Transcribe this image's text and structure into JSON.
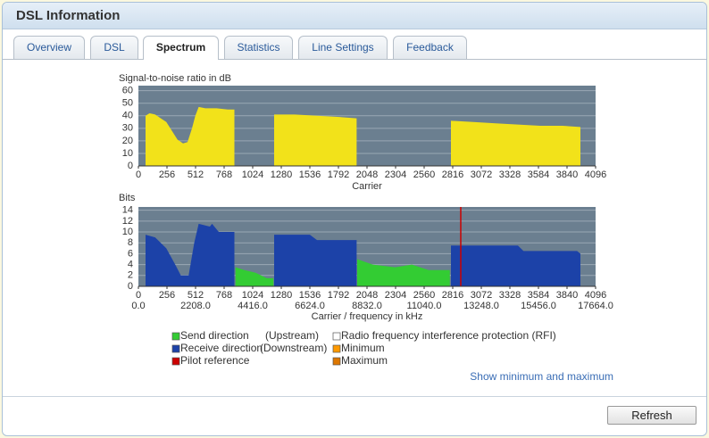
{
  "header": {
    "title": "DSL Information"
  },
  "tabs": [
    "Overview",
    "DSL",
    "Spectrum",
    "Statistics",
    "Line Settings",
    "Feedback"
  ],
  "active_tab": 2,
  "chart_data": [
    {
      "type": "area",
      "ylabel": "Signal-to-noise ratio in dB",
      "xlabel": "Carrier",
      "xlim": [
        0,
        4096
      ],
      "xticks": [
        0,
        256,
        512,
        768,
        1024,
        1280,
        1536,
        1792,
        2048,
        2304,
        2560,
        2816,
        3072,
        3328,
        3584,
        3840,
        4096
      ],
      "ylim": [
        0,
        64
      ],
      "yticks": [
        0,
        10,
        20,
        30,
        40,
        50,
        60
      ],
      "grid": true,
      "series": [
        {
          "color": "#f2e21a",
          "x": [
            64,
            100,
            150,
            200,
            250,
            300,
            350,
            400,
            440,
            480,
            510,
            540,
            600,
            700,
            800,
            860,
            1000,
            1216,
            1400,
            1600,
            1800,
            1955,
            2400,
            2800,
            3000,
            3200,
            3400,
            3600,
            3800,
            3960
          ],
          "values": [
            40,
            42,
            41,
            38,
            35,
            28,
            21,
            18,
            19,
            30,
            40,
            47,
            46,
            46,
            45,
            45,
            null,
            41,
            41,
            40,
            39,
            38,
            null,
            36,
            35,
            34,
            33,
            32,
            32,
            31
          ]
        }
      ]
    },
    {
      "type": "area",
      "ylabel": "Bits",
      "xlabel": "Carrier / frequency in kHz",
      "xlim": [
        0,
        4096
      ],
      "xticks": [
        0,
        256,
        512,
        768,
        1024,
        1280,
        1536,
        1792,
        2048,
        2304,
        2560,
        2816,
        3072,
        3328,
        3584,
        3840,
        4096
      ],
      "x2ticks": [
        {
          "value": 0,
          "label": "0.0"
        },
        {
          "value": 512,
          "label": "2208.0"
        },
        {
          "value": 1024,
          "label": "4416.0"
        },
        {
          "value": 1536,
          "label": "6624.0"
        },
        {
          "value": 2048,
          "label": "8832.0"
        },
        {
          "value": 2560,
          "label": "11040.0"
        },
        {
          "value": 3072,
          "label": "13248.0"
        },
        {
          "value": 3584,
          "label": "15456.0"
        },
        {
          "value": 4096,
          "label": "17664.0"
        }
      ],
      "ylim": [
        0,
        14.6
      ],
      "yticks": [
        0,
        2,
        4,
        6,
        8,
        10,
        12,
        14
      ],
      "grid": true,
      "pilot": 2888,
      "series": [
        {
          "name": "Send direction",
          "note": "(Upstream)",
          "color": "#33cc33",
          "x": [
            870,
            950,
            1050,
            1150,
            1210,
            1600,
            1960,
            2100,
            2300,
            2450,
            2600,
            2790
          ],
          "values": [
            3.5,
            3,
            2.5,
            1.5,
            1.5,
            null,
            5,
            4,
            3.5,
            4,
            3,
            3
          ]
        },
        {
          "name": "Receive direction",
          "note": "(Downstream)",
          "color": "#1c42a8",
          "x": [
            64,
            150,
            250,
            330,
            380,
            450,
            500,
            540,
            640,
            660,
            720,
            860,
            1000,
            1216,
            1536,
            1600,
            1955,
            2400,
            2800,
            3050,
            3200,
            3400,
            3450,
            3930,
            3960
          ],
          "values": [
            9.5,
            9,
            7,
            4,
            2,
            2,
            8,
            11.5,
            11,
            11.5,
            10,
            10,
            null,
            9.5,
            9.5,
            8.5,
            8.5,
            null,
            7.5,
            7.5,
            7.5,
            7.5,
            6.5,
            6.5,
            6
          ]
        }
      ],
      "extra_legend": [
        {
          "name": "Radio frequency interference protection (RFI)",
          "color": "#ffffff"
        },
        {
          "name": "Minimum",
          "color": "#ff9900"
        },
        {
          "name": "Pilot reference",
          "color": "#cc0000"
        },
        {
          "name": "Maximum",
          "color": "#dd7700"
        }
      ]
    }
  ],
  "link": "Show minimum and maximum",
  "button": "Refresh"
}
